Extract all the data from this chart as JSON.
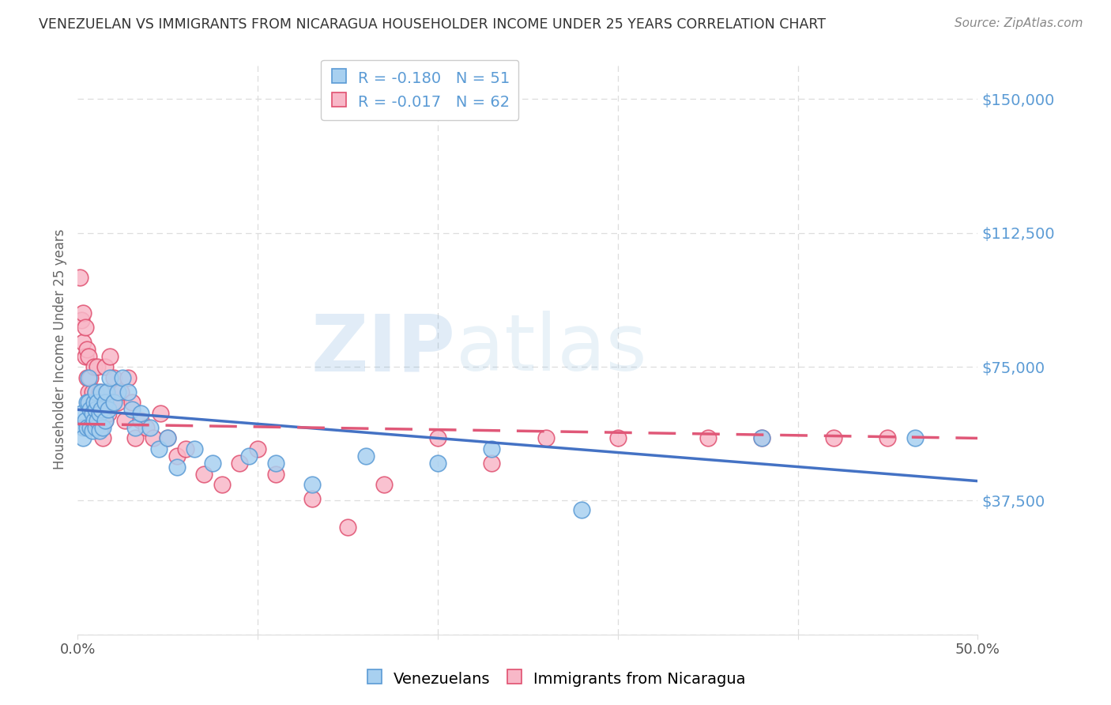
{
  "title": "VENEZUELAN VS IMMIGRANTS FROM NICARAGUA HOUSEHOLDER INCOME UNDER 25 YEARS CORRELATION CHART",
  "source": "Source: ZipAtlas.com",
  "ylabel": "Householder Income Under 25 years",
  "watermark_zip": "ZIP",
  "watermark_atlas": "atlas",
  "y_ticks": [
    0,
    37500,
    75000,
    112500,
    150000
  ],
  "y_tick_labels": [
    "",
    "$37,500",
    "$75,000",
    "$112,500",
    "$150,000"
  ],
  "xlim": [
    0.0,
    0.5
  ],
  "ylim": [
    0,
    160000
  ],
  "legend_venezuelans": "Venezuelans",
  "legend_nicaragua": "Immigrants from Nicaragua",
  "r_venezuelan": -0.18,
  "n_venezuelan": 51,
  "r_nicaragua": -0.017,
  "n_nicaragua": 62,
  "color_venezuelan_fill": "#A8D0F0",
  "color_venezuelan_edge": "#5B9BD5",
  "color_nicaragua_fill": "#F8B8C8",
  "color_nicaragua_edge": "#E05070",
  "color_trendline_venezuelan": "#4472C4",
  "color_trendline_nicaragua": "#E05878",
  "background_color": "#FFFFFF",
  "grid_color": "#DDDDDD",
  "tick_label_color_y": "#5B9BD5",
  "tick_label_color_x": "#555555",
  "title_color": "#333333",
  "source_color": "#888888",
  "watermark_color": "#C0D8EE",
  "venezuelan_x": [
    0.002,
    0.003,
    0.003,
    0.004,
    0.005,
    0.005,
    0.006,
    0.006,
    0.007,
    0.007,
    0.008,
    0.008,
    0.009,
    0.009,
    0.01,
    0.01,
    0.01,
    0.011,
    0.011,
    0.012,
    0.012,
    0.013,
    0.013,
    0.014,
    0.015,
    0.015,
    0.016,
    0.017,
    0.018,
    0.02,
    0.022,
    0.025,
    0.028,
    0.03,
    0.032,
    0.035,
    0.04,
    0.045,
    0.05,
    0.055,
    0.065,
    0.075,
    0.095,
    0.11,
    0.13,
    0.16,
    0.2,
    0.23,
    0.28,
    0.38,
    0.465
  ],
  "venezuelan_y": [
    62000,
    58000,
    55000,
    60000,
    65000,
    58000,
    72000,
    65000,
    63000,
    58000,
    62000,
    57000,
    65000,
    60000,
    68000,
    63000,
    58000,
    65000,
    60000,
    62000,
    57000,
    68000,
    63000,
    58000,
    65000,
    60000,
    68000,
    63000,
    72000,
    65000,
    68000,
    72000,
    68000,
    63000,
    58000,
    62000,
    58000,
    52000,
    55000,
    47000,
    52000,
    48000,
    50000,
    48000,
    42000,
    50000,
    48000,
    52000,
    35000,
    55000,
    55000
  ],
  "nicaragua_x": [
    0.001,
    0.002,
    0.003,
    0.003,
    0.004,
    0.004,
    0.005,
    0.005,
    0.006,
    0.006,
    0.007,
    0.007,
    0.008,
    0.008,
    0.009,
    0.009,
    0.01,
    0.01,
    0.011,
    0.011,
    0.012,
    0.012,
    0.013,
    0.013,
    0.014,
    0.014,
    0.015,
    0.015,
    0.016,
    0.017,
    0.018,
    0.019,
    0.02,
    0.022,
    0.024,
    0.026,
    0.028,
    0.03,
    0.032,
    0.035,
    0.038,
    0.042,
    0.046,
    0.05,
    0.055,
    0.06,
    0.07,
    0.08,
    0.09,
    0.1,
    0.11,
    0.13,
    0.15,
    0.17,
    0.2,
    0.23,
    0.26,
    0.3,
    0.35,
    0.38,
    0.42,
    0.45
  ],
  "nicaragua_y": [
    100000,
    88000,
    90000,
    82000,
    86000,
    78000,
    80000,
    72000,
    78000,
    68000,
    72000,
    65000,
    68000,
    62000,
    75000,
    60000,
    68000,
    62000,
    75000,
    58000,
    68000,
    60000,
    65000,
    58000,
    62000,
    55000,
    75000,
    60000,
    68000,
    62000,
    78000,
    65000,
    72000,
    65000,
    68000,
    60000,
    72000,
    65000,
    55000,
    60000,
    58000,
    55000,
    62000,
    55000,
    50000,
    52000,
    45000,
    42000,
    48000,
    52000,
    45000,
    38000,
    30000,
    42000,
    55000,
    48000,
    55000,
    55000,
    55000,
    55000,
    55000,
    55000
  ],
  "trendline_ven_y0": 63000,
  "trendline_ven_y1": 43000,
  "trendline_nic_y0": 59000,
  "trendline_nic_y1": 55000
}
